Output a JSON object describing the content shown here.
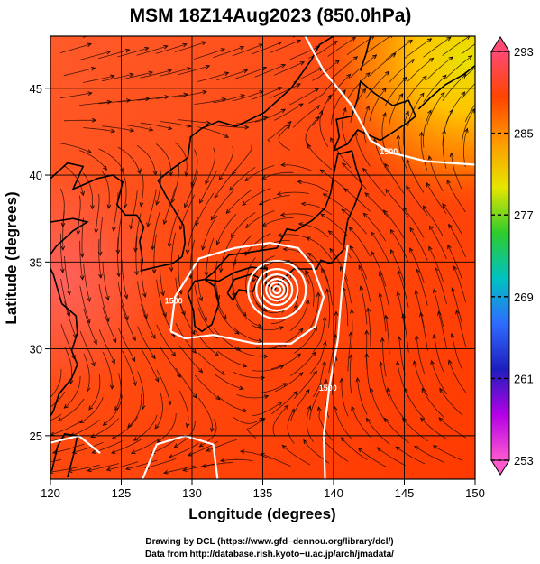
{
  "title": "MSM 18Z14Aug2023 (850.0hPa)",
  "map": {
    "xlabel": "Longitude (degrees)",
    "ylabel": "Latitude  (degrees)",
    "lon_range": [
      120,
      150
    ],
    "lat_range": [
      22.5,
      48
    ],
    "lon_ticks": [
      "120",
      "125",
      "130",
      "135",
      "140",
      "145",
      "150"
    ],
    "lat_ticks": [
      "25",
      "30",
      "35",
      "40",
      "45"
    ],
    "grid": true,
    "field": "temperature",
    "streamlines": true,
    "typhoon_center": {
      "lon": 136,
      "lat": 33.4
    },
    "contour_labels": [
      {
        "text": "1500",
        "lon": 128.7,
        "lat": 32.6
      },
      {
        "text": "1500",
        "lon": 143.9,
        "lat": 41.2
      },
      {
        "text": "1500",
        "lon": 139.6,
        "lat": 27.6
      }
    ]
  },
  "colorbar": {
    "ticks": [
      "293",
      "285",
      "277",
      "269",
      "261",
      "253"
    ],
    "stops": [
      "#ff4a73",
      "#ff4400",
      "#ff9a00",
      "#e6e600",
      "#2ecc2e",
      "#00c2c2",
      "#2f6bff",
      "#1e1ebe",
      "#b400e6",
      "#ff5ad0"
    ]
  },
  "credits": {
    "line1": "Drawing by DCL (https://www.gfd−dennou.org/library/dcl/)",
    "line2": "Data from http://database.rish.kyoto−u.ac.jp/arch/jmadata/"
  }
}
